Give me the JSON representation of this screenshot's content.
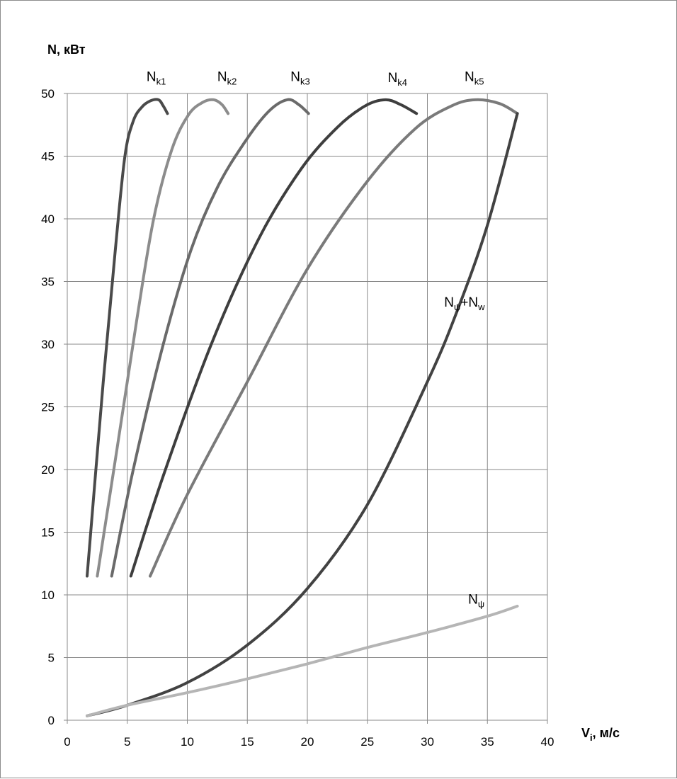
{
  "chart_data": {
    "type": "line",
    "title": "",
    "ylabel": "N, кВт",
    "xlabel": {
      "main": "V",
      "sub": "i",
      "rest": ", м/с"
    },
    "xlim": [
      0,
      40
    ],
    "ylim": [
      0,
      50
    ],
    "xticks": [
      0,
      5,
      10,
      15,
      20,
      25,
      30,
      35,
      40
    ],
    "yticks": [
      0,
      5,
      10,
      15,
      20,
      25,
      30,
      35,
      40,
      45,
      50
    ],
    "grid": true,
    "legend": "none",
    "series": [
      {
        "name": "Nk1",
        "label": {
          "main": "N",
          "sub": "k1",
          "rest": ""
        },
        "color": "#4a4a4a",
        "width": 4,
        "points": [
          [
            1.65,
            11.5
          ],
          [
            3.0,
            27.0
          ],
          [
            4.0,
            37.5
          ],
          [
            4.8,
            45.0
          ],
          [
            5.5,
            47.8
          ],
          [
            6.2,
            48.9
          ],
          [
            6.9,
            49.4
          ],
          [
            7.6,
            49.5
          ],
          [
            8.0,
            49.0
          ],
          [
            8.35,
            48.4
          ]
        ]
      },
      {
        "name": "Nk2",
        "label": {
          "main": "N",
          "sub": "k2",
          "rest": ""
        },
        "color": "#8c8c8c",
        "width": 4,
        "points": [
          [
            2.5,
            11.5
          ],
          [
            4.2,
            22.0
          ],
          [
            5.8,
            32.0
          ],
          [
            7.2,
            40.0
          ],
          [
            8.7,
            45.5
          ],
          [
            10.1,
            48.3
          ],
          [
            11.3,
            49.3
          ],
          [
            12.2,
            49.5
          ],
          [
            12.9,
            49.1
          ],
          [
            13.4,
            48.4
          ]
        ]
      },
      {
        "name": "Nk3",
        "label": {
          "main": "N",
          "sub": "k3",
          "rest": ""
        },
        "color": "#6a6a6a",
        "width": 4,
        "points": [
          [
            3.7,
            11.5
          ],
          [
            5.5,
            20.0
          ],
          [
            8.0,
            30.0
          ],
          [
            10.3,
            37.5
          ],
          [
            12.5,
            42.5
          ],
          [
            14.7,
            46.0
          ],
          [
            16.7,
            48.5
          ],
          [
            18.3,
            49.5
          ],
          [
            19.3,
            49.1
          ],
          [
            20.1,
            48.4
          ]
        ]
      },
      {
        "name": "Nk4",
        "label": {
          "main": "N",
          "sub": "k4",
          "rest": ""
        },
        "color": "#3e3e3e",
        "width": 4,
        "points": [
          [
            5.3,
            11.5
          ],
          [
            8.0,
            19.5
          ],
          [
            12.0,
            30.0
          ],
          [
            16.0,
            38.5
          ],
          [
            19.5,
            44.0
          ],
          [
            22.5,
            47.3
          ],
          [
            24.8,
            49.0
          ],
          [
            26.5,
            49.5
          ],
          [
            27.8,
            49.1
          ],
          [
            29.1,
            48.4
          ]
        ]
      },
      {
        "name": "Nk5",
        "label": {
          "main": "N",
          "sub": "k5",
          "rest": ""
        },
        "color": "#7a7a7a",
        "width": 4,
        "points": [
          [
            6.9,
            11.5
          ],
          [
            10.0,
            18.0
          ],
          [
            15.0,
            27.0
          ],
          [
            20.0,
            36.0
          ],
          [
            25.0,
            43.0
          ],
          [
            29.0,
            47.2
          ],
          [
            32.0,
            49.0
          ],
          [
            34.0,
            49.5
          ],
          [
            36.0,
            49.2
          ],
          [
            37.5,
            48.4
          ]
        ]
      },
      {
        "name": "Npsi+Nw",
        "label": {
          "main": "N",
          "sub": "ψ",
          "rest": "+N",
          "sub2": "w"
        },
        "color": "#424242",
        "width": 4,
        "points": [
          [
            1.65,
            0.35
          ],
          [
            5.0,
            1.2
          ],
          [
            10.0,
            3.0
          ],
          [
            15.0,
            6.0
          ],
          [
            20.0,
            10.5
          ],
          [
            25.0,
            17.2
          ],
          [
            30.0,
            27.0
          ],
          [
            32.5,
            32.7
          ],
          [
            35.0,
            39.5
          ],
          [
            37.5,
            48.4
          ]
        ]
      },
      {
        "name": "Npsi",
        "label": {
          "main": "N",
          "sub": "ψ",
          "rest": ""
        },
        "color": "#b5b5b5",
        "width": 4,
        "points": [
          [
            1.65,
            0.35
          ],
          [
            5.0,
            1.2
          ],
          [
            10.0,
            2.2
          ],
          [
            15.0,
            3.3
          ],
          [
            20.0,
            4.5
          ],
          [
            25.0,
            5.8
          ],
          [
            30.0,
            7.0
          ],
          [
            35.0,
            8.3
          ],
          [
            37.5,
            9.1
          ]
        ]
      }
    ],
    "annotations": [
      {
        "series": "Nk1",
        "x": 6.6,
        "y": 51.0
      },
      {
        "series": "Nk2",
        "x": 12.5,
        "y": 51.0
      },
      {
        "series": "Nk3",
        "x": 18.6,
        "y": 51.0
      },
      {
        "series": "Nk4",
        "x": 26.7,
        "y": 50.9
      },
      {
        "series": "Nk5",
        "x": 33.1,
        "y": 51.0
      },
      {
        "series": "Npsi+Nw",
        "x": 31.4,
        "y": 33.0
      },
      {
        "series": "Npsi",
        "x": 33.4,
        "y": 9.3
      }
    ]
  }
}
